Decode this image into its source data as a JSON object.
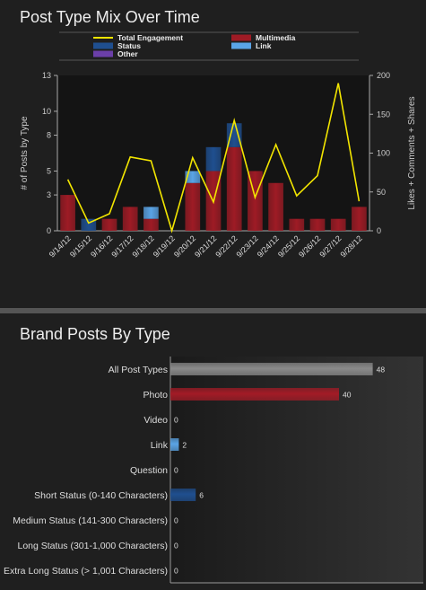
{
  "chart_data": [
    {
      "type": "bar",
      "title": "Post Type Mix Over Time",
      "categories": [
        "9/14/12",
        "9/15/12",
        "9/16/12",
        "9/17/12",
        "9/18/12",
        "9/19/12",
        "9/20/12",
        "9/21/12",
        "9/22/12",
        "9/23/12",
        "9/24/12",
        "9/25/12",
        "9/26/12",
        "9/27/12",
        "9/28/12"
      ],
      "ylabel": "# of Posts by Type",
      "y2label": "Likes + Comments + Shares",
      "ylim": [
        0,
        13
      ],
      "y2lim": [
        0,
        200
      ],
      "yticks": [
        0,
        3,
        5,
        8,
        10,
        13
      ],
      "y2ticks": [
        0,
        50,
        100,
        150,
        200
      ],
      "stacked": true,
      "legend_position": "top",
      "series": [
        {
          "name": "Multimedia",
          "kind": "bar",
          "color": "#9e1b25",
          "values": [
            3,
            0,
            1,
            2,
            1,
            0,
            4,
            5,
            7,
            5,
            4,
            1,
            1,
            1,
            2
          ]
        },
        {
          "name": "Status",
          "kind": "bar",
          "color": "#1f4f8f",
          "values": [
            0,
            1,
            0,
            0,
            0,
            0,
            0,
            2,
            2,
            0,
            0,
            0,
            0,
            0,
            0
          ]
        },
        {
          "name": "Link",
          "kind": "bar",
          "color": "#5aa4e6",
          "values": [
            0,
            0,
            0,
            0,
            1,
            0,
            1,
            0,
            0,
            0,
            0,
            0,
            0,
            0,
            0
          ]
        },
        {
          "name": "Other",
          "kind": "bar",
          "color": "#6b3fa8",
          "values": [
            0,
            0,
            0,
            0,
            0,
            0,
            0,
            0,
            0,
            0,
            0,
            0,
            0,
            0,
            0
          ]
        },
        {
          "name": "Total Engagement",
          "kind": "line",
          "axis": "right",
          "color": "#f2e500",
          "values": [
            66,
            10,
            22,
            95,
            90,
            0,
            94,
            37,
            142,
            43,
            111,
            45,
            71,
            190,
            38
          ]
        }
      ]
    },
    {
      "type": "bar",
      "orientation": "horizontal",
      "title": "Brand Posts By Type",
      "categories": [
        "All Post Types",
        "Photo",
        "Video",
        "Link",
        "Question",
        "Short Status (0-140 Characters)",
        "Medium Status (141-300 Characters)",
        "Long Status (301-1,000 Characters)",
        "Extra Long Status (> 1,001 Characters)"
      ],
      "values": [
        48,
        40,
        0,
        2,
        0,
        6,
        0,
        0,
        0
      ],
      "colors": [
        "#8a8a8a",
        "#a31b26",
        "#1f4f8f",
        "#5aa4e6",
        "#1f4f8f",
        "#1f4f8f",
        "#1f4f8f",
        "#1f4f8f",
        "#1f4f8f"
      ],
      "xlim": [
        0,
        60
      ]
    }
  ]
}
